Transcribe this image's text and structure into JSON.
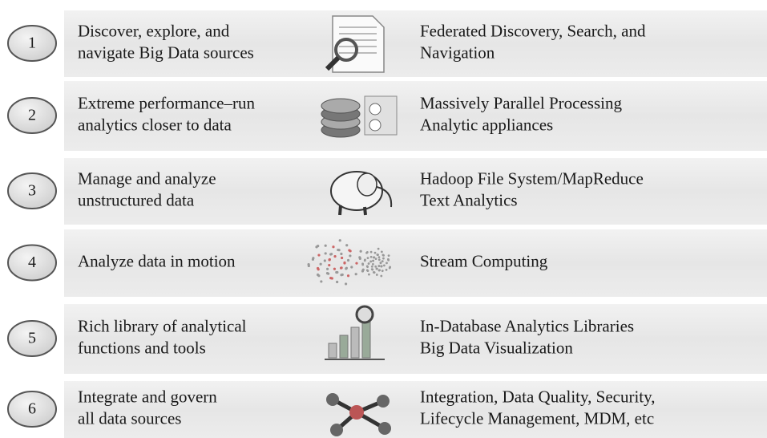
{
  "rows": [
    {
      "number": "1",
      "capability": [
        "Discover, explore, and",
        "navigate Big Data sources"
      ],
      "technology": [
        "Federated Discovery, Search, and",
        "Navigation"
      ]
    },
    {
      "number": "2",
      "capability": [
        "Extreme performance–run",
        "analytics closer to data"
      ],
      "technology": [
        "Massively Parallel Processing",
        "Analytic appliances"
      ]
    },
    {
      "number": "3",
      "capability": [
        "Manage and analyze",
        "unstructured data"
      ],
      "technology": [
        "Hadoop File System/MapReduce",
        "Text Analytics"
      ]
    },
    {
      "number": "4",
      "capability": [
        "Analyze data in motion"
      ],
      "technology": [
        "Stream Computing"
      ]
    },
    {
      "number": "5",
      "capability": [
        "Rich library of analytical",
        "functions and tools"
      ],
      "technology": [
        "In-Database Analytics Libraries",
        "Big Data Visualization"
      ]
    },
    {
      "number": "6",
      "capability": [
        "Integrate and govern",
        "all data sources"
      ],
      "technology": [
        "Integration, Data Quality, Security,",
        "Lifecycle Management, MDM, etc"
      ]
    }
  ]
}
